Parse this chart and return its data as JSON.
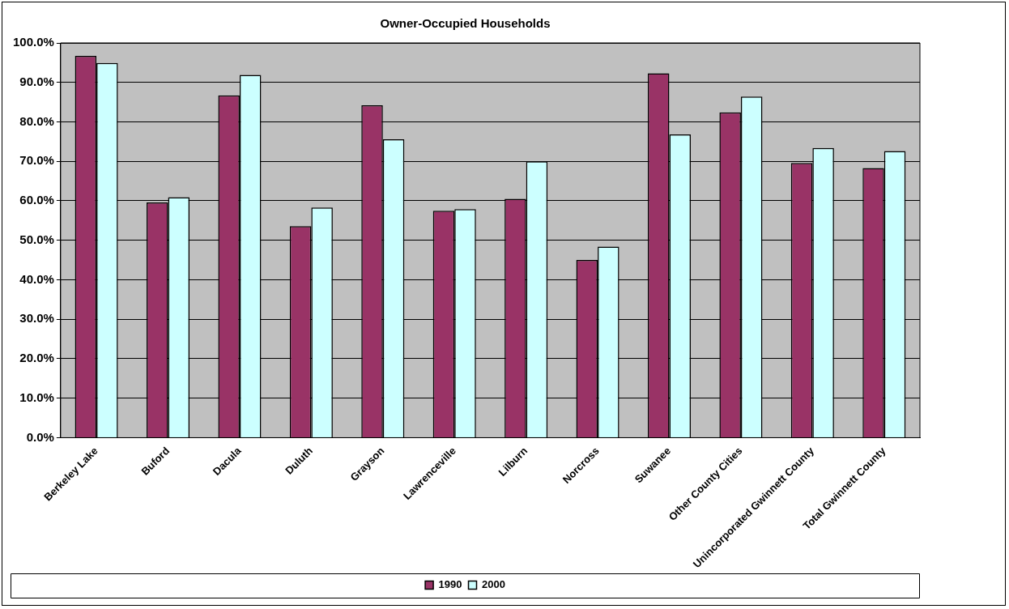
{
  "chart_data": {
    "type": "bar",
    "title": "Owner-Occupied Households",
    "categories": [
      "Berkeley Lake",
      "Buford",
      "Dacula",
      "Duluth",
      "Grayson",
      "Lawrenceville",
      "Lilburn",
      "Norcross",
      "Suwanee",
      "Other County Cities",
      "Unincorporated Gwinnett County",
      "Total Gwinnett County"
    ],
    "series": [
      {
        "name": "1990",
        "color": "#993366",
        "values": [
          96.7,
          59.6,
          86.7,
          53.6,
          84.2,
          57.5,
          60.5,
          45.0,
          92.3,
          82.4,
          69.6,
          68.3
        ]
      },
      {
        "name": "2000",
        "color": "#ccffff",
        "values": [
          94.9,
          60.9,
          91.9,
          58.3,
          75.6,
          57.9,
          70.0,
          48.4,
          76.8,
          86.4,
          73.4,
          72.6
        ]
      }
    ],
    "ylim": [
      0,
      100
    ],
    "yticks": [
      {
        "value": 0,
        "label": "0.0%"
      },
      {
        "value": 10,
        "label": "10.0%"
      },
      {
        "value": 20,
        "label": "20.0%"
      },
      {
        "value": 30,
        "label": "30.0%"
      },
      {
        "value": 40,
        "label": "40.0%"
      },
      {
        "value": 50,
        "label": "50.0%"
      },
      {
        "value": 60,
        "label": "60.0%"
      },
      {
        "value": 70,
        "label": "70.0%"
      },
      {
        "value": 80,
        "label": "80.0%"
      },
      {
        "value": 90,
        "label": "90.0%"
      },
      {
        "value": 100,
        "label": "100.0%"
      }
    ],
    "grid": "y",
    "legend": "bottom"
  }
}
